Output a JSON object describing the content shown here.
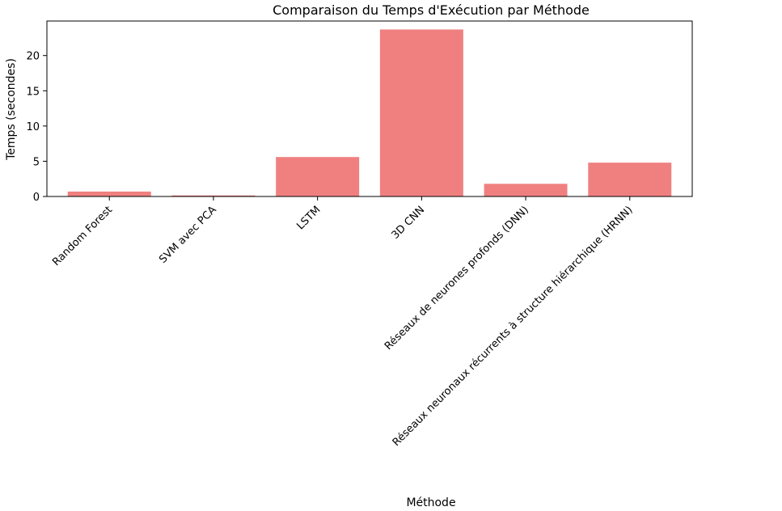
{
  "chart_data": {
    "type": "bar",
    "title": "Comparaison du Temps d'Exécution par Méthode",
    "xlabel": "Méthode",
    "ylabel": "Temps (secondes)",
    "categories": [
      "Random Forest",
      "SVM avec PCA",
      "LSTM",
      "3D CNN",
      "Réseaux de neurones profonds (DNN)",
      "Réseaux neuronaux récurrents à structure hiérarchique (HRNN)"
    ],
    "values": [
      0.7,
      0.15,
      5.6,
      23.7,
      1.8,
      4.8
    ],
    "ylim": [
      0,
      24.9
    ],
    "yticks": [
      0,
      5,
      10,
      15,
      20
    ],
    "bar_color": "#f08080",
    "grid": false
  }
}
